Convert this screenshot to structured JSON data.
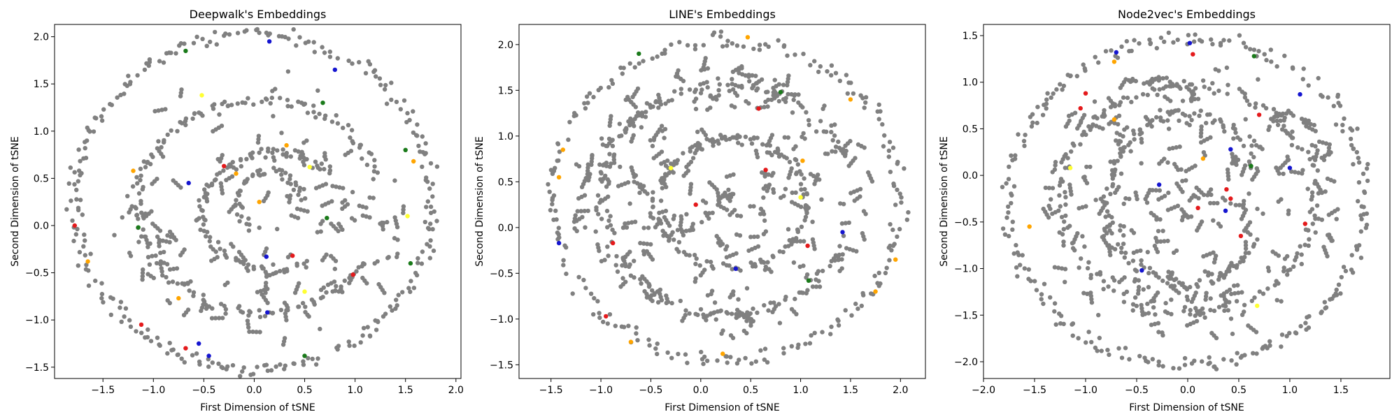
{
  "colors": {
    "background": "#ffffff",
    "axes": "#000000",
    "gray_points": "#808080",
    "red": "#e41a1c",
    "blue": "#1515d0",
    "green": "#1a7a1a",
    "orange": "#ffa500",
    "yellow": "#ffff33"
  },
  "chart_data": [
    {
      "type": "scatter",
      "title": "Deepwalk's Embeddings",
      "xlabel": "First Dimension of tSNE",
      "ylabel": "Second Dimension of tSNE",
      "xlim": [
        -1.98,
        2.05
      ],
      "ylim": [
        -1.62,
        2.13
      ],
      "xticks": [
        -1.5,
        -1.0,
        -0.5,
        0.0,
        0.5,
        1.0,
        1.5,
        2.0
      ],
      "yticks": [
        -1.5,
        -1.0,
        -0.5,
        0.0,
        0.5,
        1.0,
        1.5,
        2.0
      ],
      "structure": {
        "rings": [
          {
            "cx": 0.0,
            "cy": 0.25,
            "rx": 1.78,
            "ry": 1.78,
            "n": 300,
            "from": 0,
            "to": 360
          },
          {
            "cx": 0.05,
            "cy": 0.2,
            "rx": 1.22,
            "ry": 1.12,
            "n": 200,
            "from": 15,
            "to": 330
          },
          {
            "cx": 0.2,
            "cy": 0.15,
            "rx": 0.72,
            "ry": 0.62,
            "n": 130,
            "from": 40,
            "to": 300
          },
          {
            "cx": 0.15,
            "cy": 0.25,
            "rx": 0.32,
            "ry": 0.32,
            "n": 60,
            "from": 0,
            "to": 250
          }
        ],
        "scatter_count": 120,
        "spread": 0.04,
        "seed": 11
      },
      "highlighted": [
        {
          "x": -1.78,
          "y": 0.0,
          "color": "red"
        },
        {
          "x": -1.12,
          "y": -1.05,
          "color": "red"
        },
        {
          "x": -0.68,
          "y": -1.3,
          "color": "red"
        },
        {
          "x": -0.3,
          "y": 0.63,
          "color": "red"
        },
        {
          "x": 0.38,
          "y": -0.32,
          "color": "red"
        },
        {
          "x": 0.98,
          "y": -0.52,
          "color": "red"
        },
        {
          "x": -0.68,
          "y": 1.85,
          "color": "green"
        },
        {
          "x": 0.68,
          "y": 1.3,
          "color": "green"
        },
        {
          "x": 1.5,
          "y": 0.8,
          "color": "green"
        },
        {
          "x": 0.72,
          "y": 0.08,
          "color": "green"
        },
        {
          "x": 1.55,
          "y": -0.4,
          "color": "green"
        },
        {
          "x": 0.5,
          "y": -1.38,
          "color": "green"
        },
        {
          "x": -1.15,
          "y": -0.02,
          "color": "green"
        },
        {
          "x": 0.15,
          "y": 1.95,
          "color": "blue"
        },
        {
          "x": 0.8,
          "y": 1.65,
          "color": "blue"
        },
        {
          "x": -0.65,
          "y": 0.45,
          "color": "blue"
        },
        {
          "x": 0.12,
          "y": -0.33,
          "color": "blue"
        },
        {
          "x": 0.13,
          "y": -0.92,
          "color": "blue"
        },
        {
          "x": -0.55,
          "y": -1.25,
          "color": "blue"
        },
        {
          "x": -0.45,
          "y": -1.38,
          "color": "blue"
        },
        {
          "x": -0.52,
          "y": 1.38,
          "color": "yellow"
        },
        {
          "x": 0.55,
          "y": 0.62,
          "color": "yellow"
        },
        {
          "x": 1.52,
          "y": 0.1,
          "color": "yellow"
        },
        {
          "x": 0.5,
          "y": -0.7,
          "color": "yellow"
        },
        {
          "x": -0.18,
          "y": 0.55,
          "color": "orange"
        },
        {
          "x": 0.32,
          "y": 0.85,
          "color": "orange"
        },
        {
          "x": 1.58,
          "y": 0.68,
          "color": "orange"
        },
        {
          "x": -1.2,
          "y": 0.58,
          "color": "orange"
        },
        {
          "x": -1.65,
          "y": -0.38,
          "color": "orange"
        },
        {
          "x": -0.75,
          "y": -0.77,
          "color": "orange"
        },
        {
          "x": 0.05,
          "y": 0.25,
          "color": "orange"
        }
      ]
    },
    {
      "type": "scatter",
      "title": "LINE's Embeddings",
      "xlabel": "First Dimension of tSNE",
      "ylabel": "Second Dimension of tSNE",
      "xlim": [
        -1.82,
        2.25
      ],
      "ylim": [
        -1.65,
        2.22
      ],
      "xticks": [
        -1.5,
        -1.0,
        -0.5,
        0.0,
        0.5,
        1.0,
        1.5,
        2.0
      ],
      "yticks": [
        -1.5,
        -1.0,
        -0.5,
        0.0,
        0.5,
        1.0,
        1.5,
        2.0
      ],
      "structure": {
        "rings": [
          {
            "cx": 0.25,
            "cy": 0.3,
            "rx": 1.75,
            "ry": 1.75,
            "n": 260,
            "from": 0,
            "to": 360
          },
          {
            "cx": 0.25,
            "cy": 0.3,
            "rx": 1.25,
            "ry": 1.25,
            "n": 170,
            "from": 20,
            "to": 340
          },
          {
            "cx": 0.3,
            "cy": 0.25,
            "rx": 0.75,
            "ry": 0.7,
            "n": 120,
            "from": 0,
            "to": 360
          }
        ],
        "scatter_count": 260,
        "spread": 0.05,
        "seed": 23
      },
      "highlighted": [
        {
          "x": -0.88,
          "y": -0.17,
          "color": "red"
        },
        {
          "x": -0.95,
          "y": -0.97,
          "color": "red"
        },
        {
          "x": 0.58,
          "y": 1.3,
          "color": "red"
        },
        {
          "x": 0.65,
          "y": 0.63,
          "color": "red"
        },
        {
          "x": 1.07,
          "y": -0.2,
          "color": "red"
        },
        {
          "x": -0.05,
          "y": 0.25,
          "color": "red"
        },
        {
          "x": -1.42,
          "y": -0.17,
          "color": "blue"
        },
        {
          "x": 0.35,
          "y": -0.45,
          "color": "blue"
        },
        {
          "x": 1.42,
          "y": -0.05,
          "color": "blue"
        },
        {
          "x": -0.62,
          "y": 1.9,
          "color": "green"
        },
        {
          "x": 0.8,
          "y": 1.48,
          "color": "green"
        },
        {
          "x": 1.08,
          "y": -0.58,
          "color": "green"
        },
        {
          "x": -1.42,
          "y": 0.55,
          "color": "orange"
        },
        {
          "x": -1.38,
          "y": 0.85,
          "color": "orange"
        },
        {
          "x": 0.47,
          "y": 2.08,
          "color": "orange"
        },
        {
          "x": 1.02,
          "y": 0.73,
          "color": "orange"
        },
        {
          "x": 1.5,
          "y": 1.4,
          "color": "orange"
        },
        {
          "x": -0.7,
          "y": -1.25,
          "color": "orange"
        },
        {
          "x": 0.22,
          "y": -1.38,
          "color": "orange"
        },
        {
          "x": 1.75,
          "y": -0.7,
          "color": "orange"
        },
        {
          "x": 1.95,
          "y": -0.35,
          "color": "orange"
        },
        {
          "x": 1.0,
          "y": 0.33,
          "color": "yellow"
        },
        {
          "x": -0.3,
          "y": 0.65,
          "color": "yellow"
        }
      ]
    },
    {
      "type": "scatter",
      "title": "Node2vec's Embeddings",
      "xlabel": "First Dimension of tSNE",
      "ylabel": "Second Dimension of tSNE",
      "xlim": [
        -2.0,
        1.98
      ],
      "ylim": [
        -2.18,
        1.62
      ],
      "xticks": [
        -2.0,
        -1.5,
        -1.0,
        -0.5,
        0.0,
        0.5,
        1.0,
        1.5
      ],
      "yticks": [
        -2.0,
        -1.5,
        -1.0,
        -0.5,
        0.0,
        0.5,
        1.0,
        1.5
      ],
      "structure": {
        "rings": [
          {
            "cx": 0.0,
            "cy": -0.28,
            "rx": 1.75,
            "ry": 1.75,
            "n": 300,
            "from": 0,
            "to": 360
          },
          {
            "cx": 0.0,
            "cy": -0.25,
            "rx": 1.25,
            "ry": 1.22,
            "n": 190,
            "from": 0,
            "to": 360
          },
          {
            "cx": 0.0,
            "cy": -0.25,
            "rx": 0.78,
            "ry": 0.9,
            "n": 140,
            "from": 30,
            "to": 330
          }
        ],
        "scatter_count": 240,
        "spread": 0.05,
        "seed": 37
      },
      "highlighted": [
        {
          "x": 0.05,
          "y": 1.3,
          "color": "red"
        },
        {
          "x": -1.0,
          "y": 0.88,
          "color": "red"
        },
        {
          "x": -1.05,
          "y": 0.72,
          "color": "red"
        },
        {
          "x": 0.1,
          "y": -0.35,
          "color": "red"
        },
        {
          "x": 0.38,
          "y": -0.15,
          "color": "red"
        },
        {
          "x": 0.42,
          "y": -0.25,
          "color": "red"
        },
        {
          "x": 0.52,
          "y": -0.65,
          "color": "red"
        },
        {
          "x": 1.15,
          "y": -0.52,
          "color": "red"
        },
        {
          "x": 0.7,
          "y": 0.65,
          "color": "red"
        },
        {
          "x": 0.02,
          "y": 1.42,
          "color": "blue"
        },
        {
          "x": -0.7,
          "y": 1.32,
          "color": "blue"
        },
        {
          "x": 0.42,
          "y": 0.28,
          "color": "blue"
        },
        {
          "x": 0.37,
          "y": -0.38,
          "color": "blue"
        },
        {
          "x": -0.28,
          "y": -0.1,
          "color": "blue"
        },
        {
          "x": 1.0,
          "y": 0.08,
          "color": "blue"
        },
        {
          "x": 1.1,
          "y": 0.87,
          "color": "blue"
        },
        {
          "x": -0.45,
          "y": -1.02,
          "color": "blue"
        },
        {
          "x": 0.65,
          "y": 1.28,
          "color": "green"
        },
        {
          "x": 0.62,
          "y": 0.1,
          "color": "green"
        },
        {
          "x": -0.72,
          "y": 1.22,
          "color": "orange"
        },
        {
          "x": -0.72,
          "y": 0.6,
          "color": "orange"
        },
        {
          "x": 0.15,
          "y": 0.18,
          "color": "orange"
        },
        {
          "x": -1.55,
          "y": -0.55,
          "color": "orange"
        },
        {
          "x": 0.68,
          "y": -1.4,
          "color": "yellow"
        },
        {
          "x": -1.15,
          "y": 0.08,
          "color": "yellow"
        }
      ]
    }
  ]
}
